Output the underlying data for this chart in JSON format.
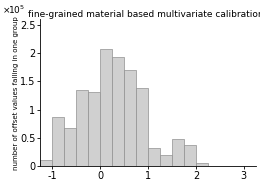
{
  "title": "fine-grained material based multivariate calibrations",
  "ylabel": "number of offset values falling in one group",
  "bar_color": "#d0d0d0",
  "bar_edgecolor": "#909090",
  "xlim": [
    -1.25,
    3.25
  ],
  "ylim": [
    0,
    260000
  ],
  "xticks": [
    -1,
    0,
    1,
    2,
    3
  ],
  "bar_lefts": [
    -1.25,
    -1.0,
    -0.75,
    -0.5,
    -0.25,
    0.0,
    0.25,
    0.5,
    0.75,
    1.0,
    1.25,
    1.5,
    1.75,
    2.0,
    2.25,
    2.5,
    2.75
  ],
  "bar_heights": [
    10000,
    87000,
    68000,
    135000,
    132000,
    207000,
    194000,
    170000,
    138000,
    32000,
    20000,
    48000,
    37000,
    5000,
    0,
    0,
    0
  ],
  "bar_width": 0.25,
  "ytick_vals": [
    0,
    50000,
    100000,
    150000,
    200000,
    250000
  ],
  "ytick_labels": [
    "0",
    "0.5",
    "1",
    "1.5",
    "2",
    "2.5"
  ],
  "scale_label": "x 10^5"
}
